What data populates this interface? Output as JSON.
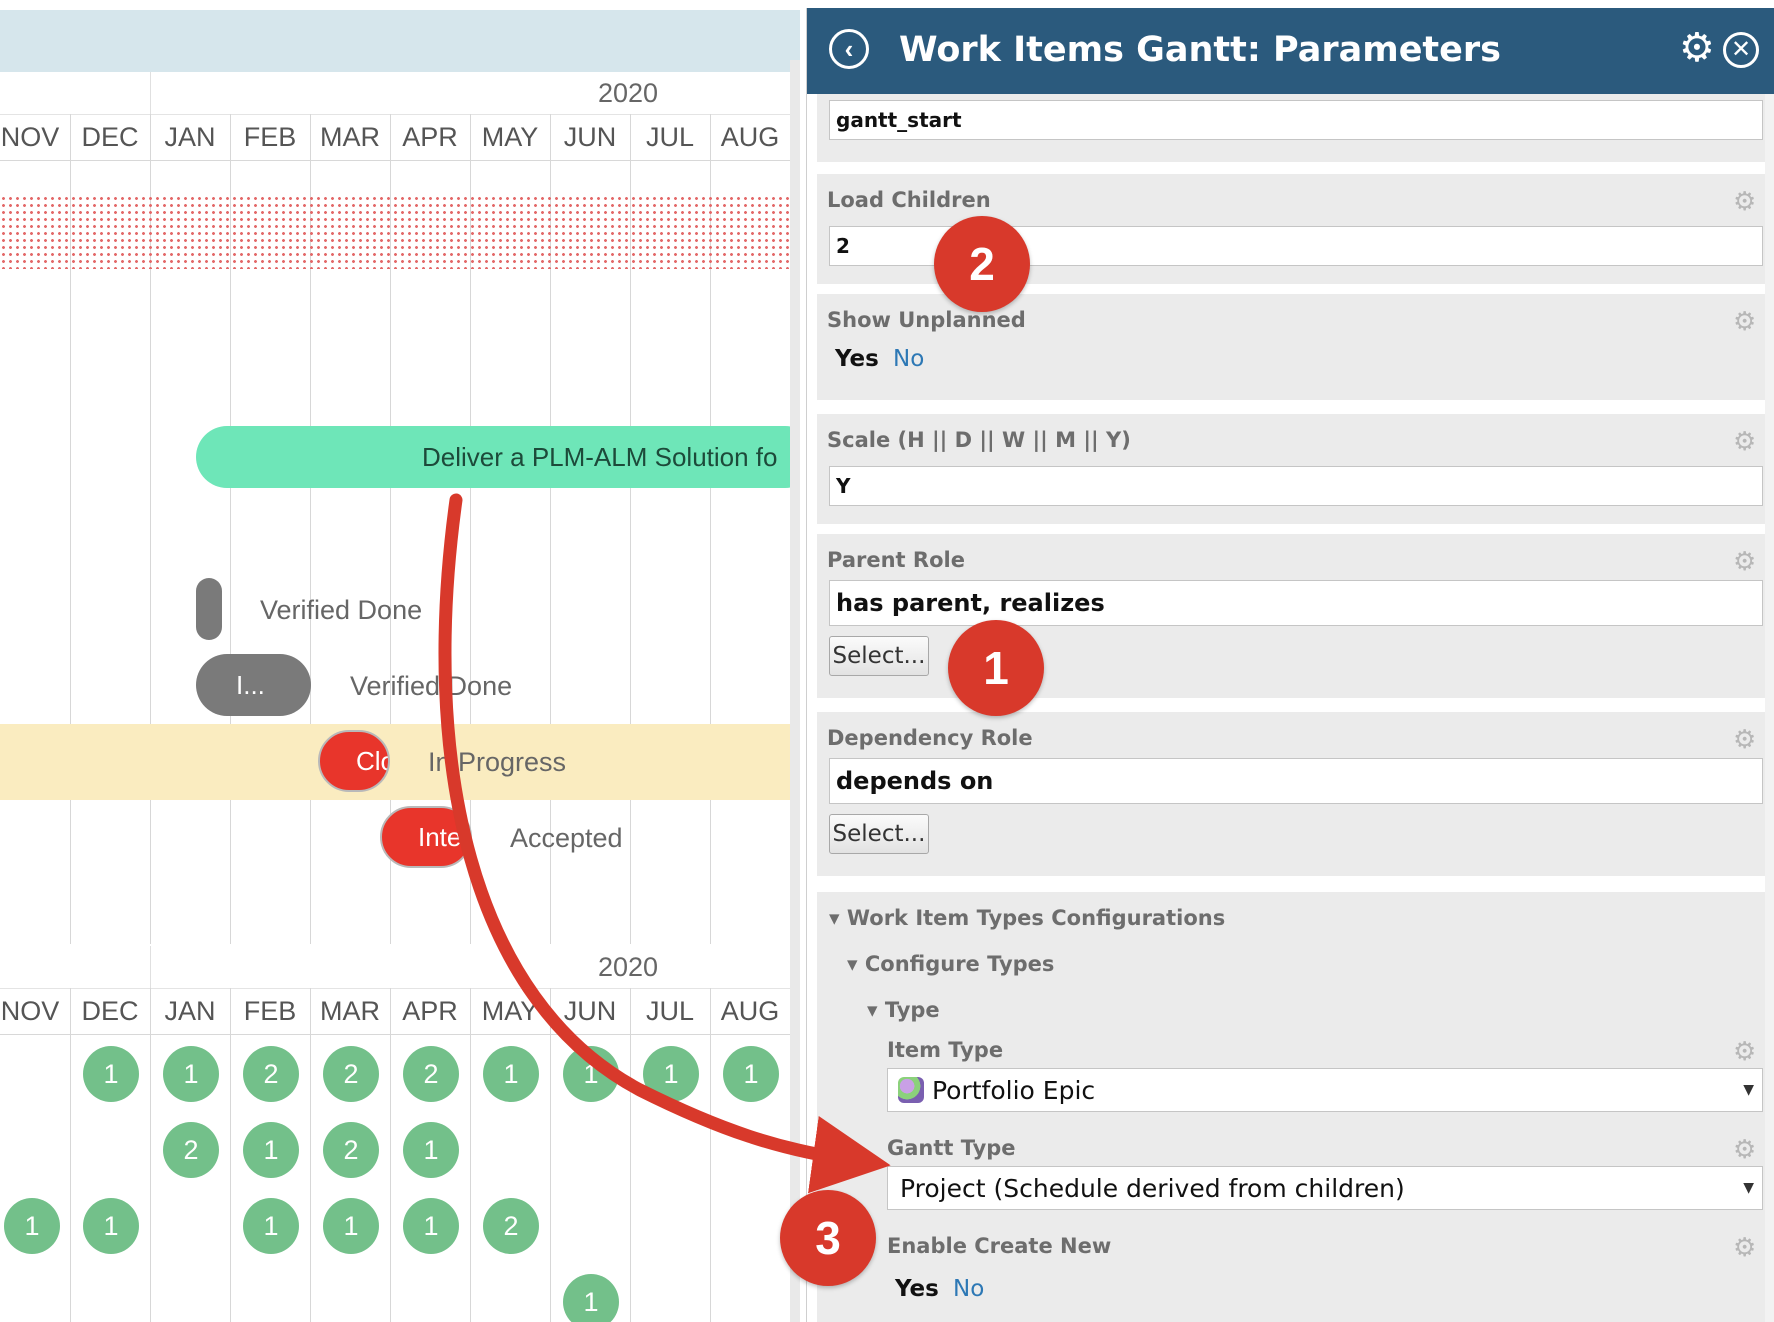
{
  "gantt": {
    "year": "2020",
    "months": [
      "NOV",
      "DEC",
      "JAN",
      "FEB",
      "MAR",
      "APR",
      "MAY",
      "JUN",
      "JUL",
      "AUG"
    ],
    "bars": {
      "portfolio": "Deliver a PLM-ALM Solution fo",
      "item_b": "I...",
      "item_c": "Clo",
      "item_d": "Integ"
    },
    "statuses": {
      "a": "Verified Done",
      "b": "Verified Done",
      "c": "In Progress",
      "d": "Accepted"
    },
    "counts": {
      "row1": [
        "1",
        "1",
        "2",
        "2",
        "2",
        "1",
        "1",
        "1",
        "1"
      ],
      "row2": [
        "2",
        "1",
        "2",
        "1"
      ],
      "row3": [
        "1",
        "1",
        "1",
        "1",
        "1",
        "2"
      ],
      "row4": [
        "1"
      ]
    }
  },
  "panel": {
    "title": "Work Items Gantt: Parameters",
    "start_field_value": "gantt_start",
    "load_children": {
      "label": "Load Children",
      "value": "2"
    },
    "show_unplanned": {
      "label": "Show Unplanned",
      "yes": "Yes",
      "no": "No"
    },
    "scale": {
      "label": "Scale (H || D || W || M || Y)",
      "value": "Y"
    },
    "parent_role": {
      "label": "Parent Role",
      "value": "has parent, realizes",
      "button": "Select..."
    },
    "dependency_role": {
      "label": "Dependency Role",
      "value": "depends on",
      "button": "Select..."
    },
    "wit_configs": {
      "label": "Work Item Types Configurations",
      "configure_types": "Configure Types",
      "type": "Type",
      "item_type": {
        "label": "Item Type",
        "value": "Portfolio Epic"
      },
      "gantt_type": {
        "label": "Gantt Type",
        "value": "Project (Schedule derived from children)"
      },
      "enable_create_new": {
        "label": "Enable Create New",
        "yes": "Yes",
        "no": "No"
      }
    }
  },
  "annotations": {
    "one": "1",
    "two": "2",
    "three": "3"
  },
  "colors": {
    "header": "#2b5a7d",
    "badge": "#d8392b",
    "portfolio_bar": "#6ee6b8",
    "done_bar": "#7a7a7a",
    "late_bar": "#e8352b",
    "count_circle": "#73c08a",
    "link": "#2d78b5"
  }
}
